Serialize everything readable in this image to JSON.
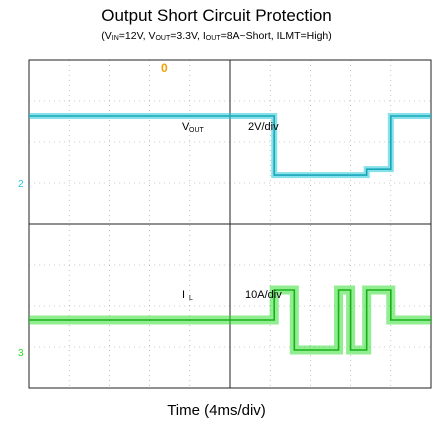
{
  "title": "Output Short Circuit Protection",
  "subtitle": {
    "v_in_label": "V",
    "v_in_sub": "IN",
    "v_in_value": "=12V, ",
    "v_out_label": "V",
    "v_out_sub": "OUT",
    "v_out_value": "=3.3V, ",
    "i_out_label": "I",
    "i_out_sub": "OUT",
    "i_out_value": "=8A~Short, ILMT=High)"
  },
  "chart_data": {
    "type": "line",
    "title": "Output Short Circuit Protection",
    "xlabel": "Time (4ms/div)",
    "x_scale": "4ms/div",
    "grid": true,
    "grid_divisions": {
      "x": 2,
      "y": 4
    },
    "x": [
      0,
      2,
      4,
      5.8,
      6.1,
      6.6,
      7.0,
      7.7,
      8.0,
      8.4,
      9.0,
      10.0
    ],
    "series": [
      {
        "name": "Vout",
        "label_main": "V",
        "label_sub": "OUT",
        "scale": "2V/div",
        "color": "#22c8d8",
        "marker": "2",
        "values": [
          3.3,
          3.3,
          3.3,
          3.3,
          0.3,
          0.3,
          0.3,
          0.3,
          0.3,
          0.6,
          3.3,
          3.3
        ]
      },
      {
        "name": "IL",
        "label_main": "I",
        "label_sub": "L",
        "scale": "10A/div",
        "color": "#22dd22",
        "marker": "3",
        "values": [
          8,
          8,
          8,
          8,
          18,
          -2,
          -2,
          18,
          -2,
          18,
          8,
          8
        ]
      }
    ],
    "trigger_marker": "0"
  },
  "xlabel": "Time (4ms/div)",
  "colors": {
    "vout": "#22c8d8",
    "il": "#22dd22",
    "trigger": "#f0a000",
    "grid": "#9a9a9a"
  }
}
